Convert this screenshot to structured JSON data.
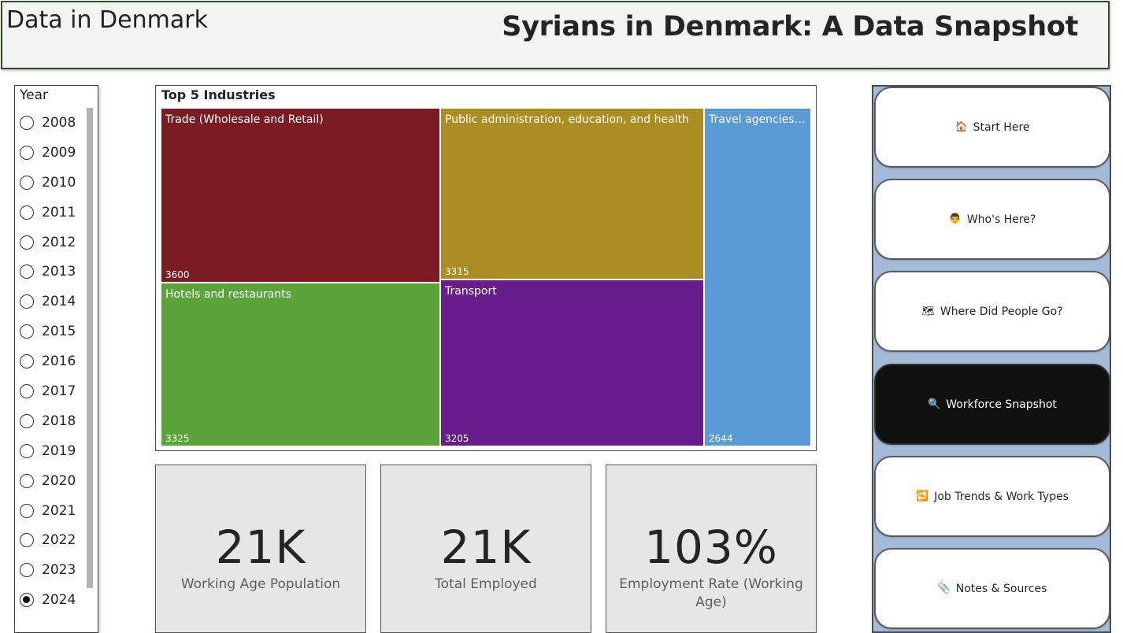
{
  "header": {
    "brand": "Data in Denmark",
    "title": "Syrians in Denmark: A Data Snapshot"
  },
  "slicer": {
    "title": "Year",
    "options": [
      "2008",
      "2009",
      "2010",
      "2011",
      "2012",
      "2013",
      "2014",
      "2015",
      "2016",
      "2017",
      "2018",
      "2019",
      "2020",
      "2021",
      "2022",
      "2023",
      "2024"
    ],
    "selected": "2024"
  },
  "treemap": {
    "title": "Top 5 Industries",
    "tiles": [
      {
        "label": "Trade (Wholesale and Retail)",
        "value": "3600",
        "color": "#7b1c23"
      },
      {
        "label": "Public administration, education, and health",
        "value": "3315",
        "color": "#ab8d22"
      },
      {
        "label": "Travel agencies, c...",
        "value": "2644",
        "color": "#5b9bd5"
      },
      {
        "label": "Hotels and restaurants",
        "value": "3325",
        "color": "#5aa43a"
      },
      {
        "label": "Transport",
        "value": "3205",
        "color": "#671e8a"
      }
    ]
  },
  "chart_data": {
    "type": "heatmap",
    "title": "Top 5 Industries",
    "categories": [
      "Trade (Wholesale and Retail)",
      "Public administration, education, and health",
      "Travel agencies, c...",
      "Hotels and restaurants",
      "Transport"
    ],
    "values": [
      3600,
      3315,
      2644,
      3325,
      3205
    ]
  },
  "kpis": [
    {
      "value": "21K",
      "label": "Working Age Population"
    },
    {
      "value": "21K",
      "label": "Total Employed"
    },
    {
      "value": "103%",
      "label": "Employment Rate (Working Age)"
    }
  ],
  "nav": {
    "buttons": [
      {
        "icon": "🏠",
        "label": "Start Here"
      },
      {
        "icon": "👨",
        "label": "Who's Here?"
      },
      {
        "icon": "🗺",
        "label": "Where Did People Go?"
      },
      {
        "icon": "🔍",
        "label": "Workforce Snapshot"
      },
      {
        "icon": "🔁",
        "label": "Job Trends & Work Types"
      },
      {
        "icon": "📎",
        "label": "Notes & Sources"
      }
    ],
    "active": "Workforce Snapshot"
  }
}
